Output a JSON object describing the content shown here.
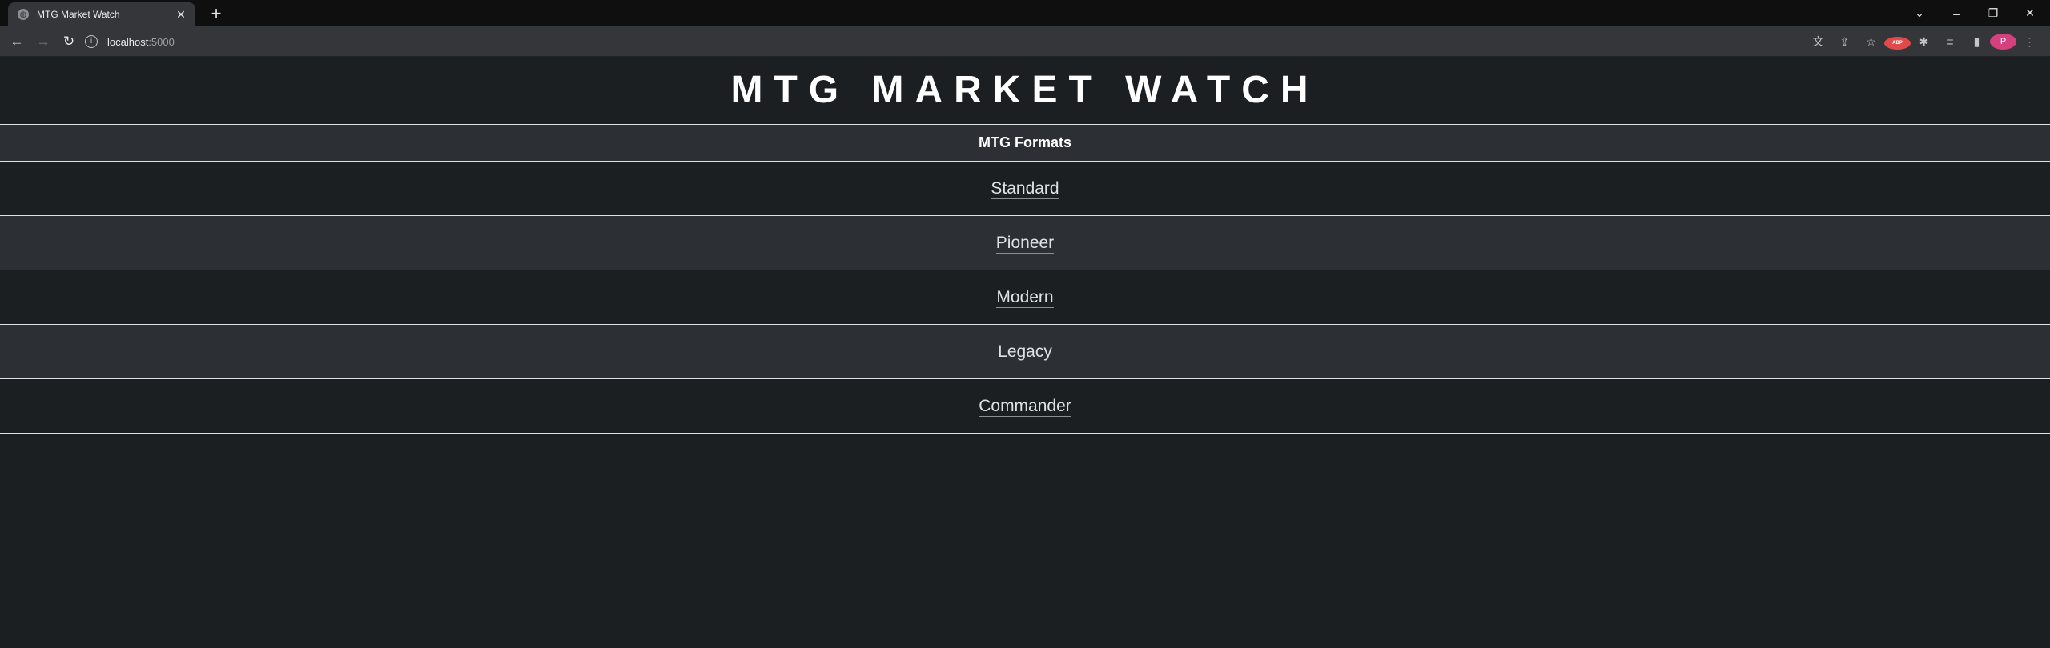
{
  "browser": {
    "tab_title": "MTG Market Watch",
    "tab_close": "✕",
    "new_tab": "+",
    "url_host": "localhost",
    "url_port": ":5000",
    "profile_initial": "P",
    "abp_label": "ABP"
  },
  "page": {
    "site_title": "MTG MARKET WATCH",
    "table_header": "MTG Formats",
    "formats": [
      {
        "label": "Standard"
      },
      {
        "label": "Pioneer"
      },
      {
        "label": "Modern"
      },
      {
        "label": "Legacy"
      },
      {
        "label": "Commander"
      }
    ]
  },
  "colors": {
    "page_bg": "#1b1f22",
    "row_alt_bg": "#2c3034",
    "border": "#dee2e6",
    "avatar": "#d6407f"
  }
}
